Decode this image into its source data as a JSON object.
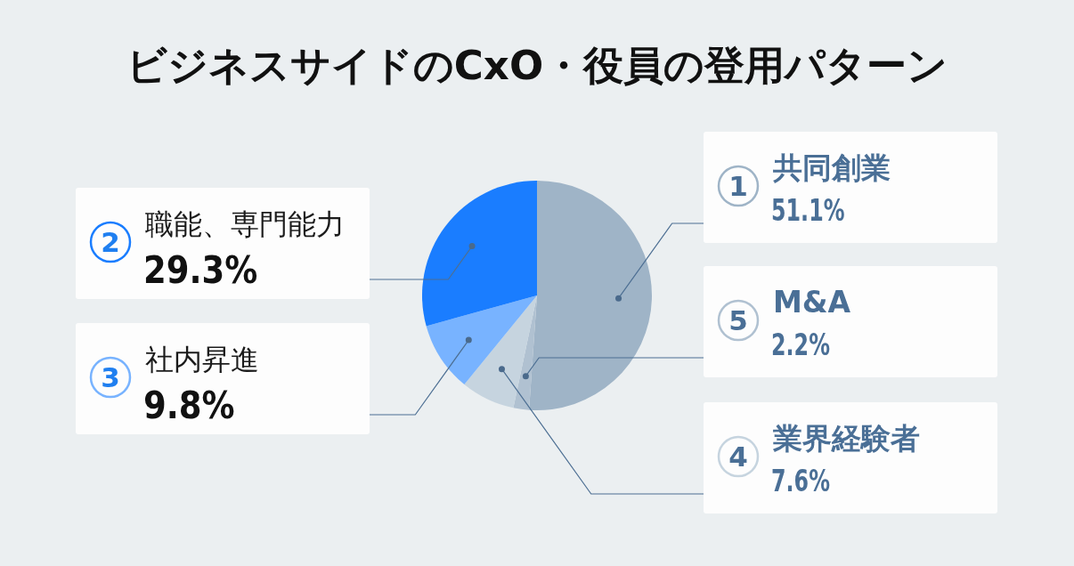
{
  "chart_data": {
    "type": "pie",
    "title": "ビジネスサイドのCxO・役員の登用パターン",
    "categories": [
      "共同創業",
      "M&A",
      "業界経験者",
      "社内昇進",
      "職能、専門能力"
    ],
    "values": [
      51.1,
      2.2,
      7.6,
      9.8,
      29.3
    ],
    "colors": [
      "#9fb4c7",
      "#b0c1d1",
      "#c6d4df",
      "#78b3ff",
      "#1a7dff"
    ],
    "value_labels": [
      "51.1%",
      "2.2%",
      "7.6%",
      "9.8%",
      "29.3%"
    ],
    "annotations": [
      "1",
      "5",
      "4",
      "3",
      "2"
    ],
    "legend": "bottom left"
  }
}
